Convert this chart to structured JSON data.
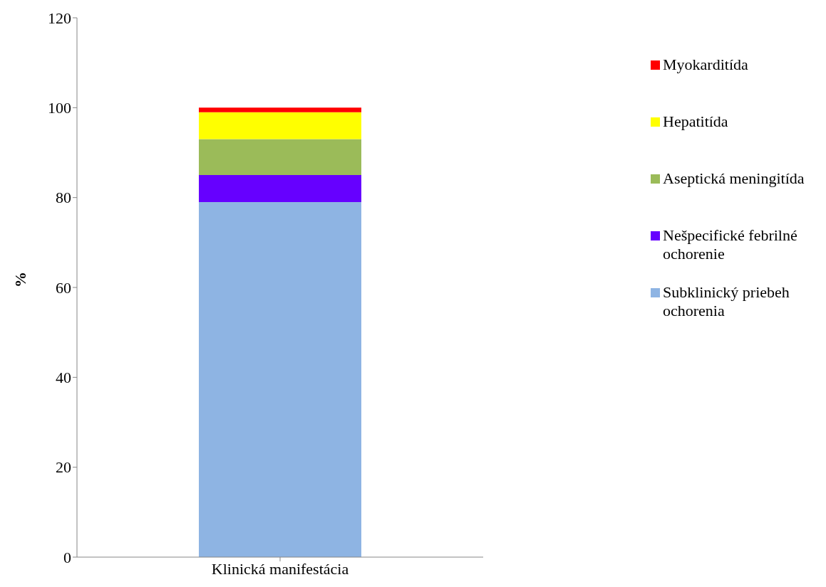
{
  "chart_data": {
    "type": "bar",
    "stacked": true,
    "categories": [
      "Klinická manifestácia"
    ],
    "ylabel": "%",
    "ylim": [
      0,
      120
    ],
    "yticks": [
      0,
      20,
      40,
      60,
      80,
      100,
      120
    ],
    "grid": false,
    "legend": "right",
    "series": [
      {
        "name": "Subklinický priebeh ochorenia",
        "color": "#8eb4e3",
        "values": [
          79
        ]
      },
      {
        "name": "Nešpecifické febrilné ochorenie",
        "color": "#6600ff",
        "values": [
          6
        ]
      },
      {
        "name": "Aseptická meningitída",
        "color": "#9bbb59",
        "values": [
          8
        ]
      },
      {
        "name": "Hepatitída",
        "color": "#ffff00",
        "values": [
          6
        ]
      },
      {
        "name": "Myokarditída",
        "color": "#ff0000",
        "values": [
          1
        ]
      }
    ]
  }
}
